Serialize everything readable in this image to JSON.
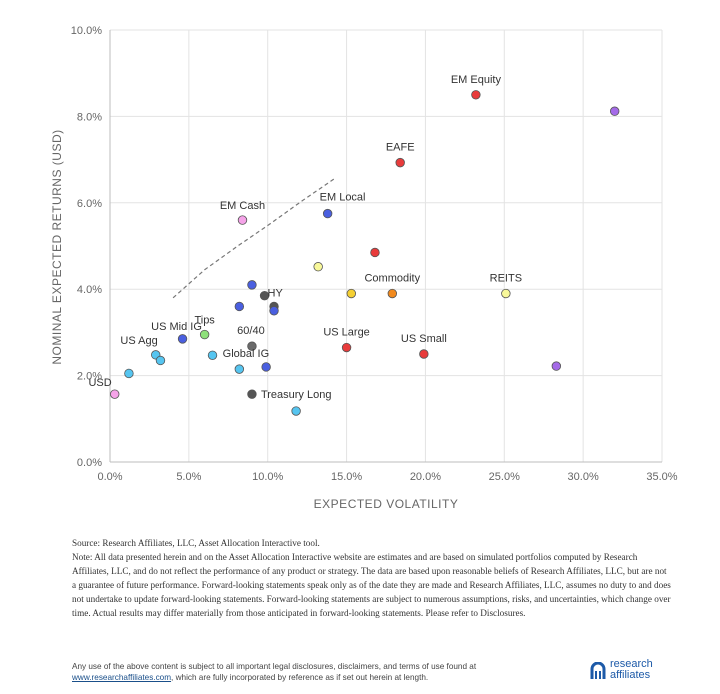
{
  "chart_data": {
    "type": "scatter",
    "xlabel": "EXPECTED VOLATILITY",
    "ylabel": "NOMINAL EXPECTED RETURNS (USD)",
    "xlim": [
      0,
      35
    ],
    "ylim": [
      0,
      10
    ],
    "x_ticks": [
      "0.0%",
      "5.0%",
      "10.0%",
      "15.0%",
      "20.0%",
      "25.0%",
      "30.0%",
      "35.0%"
    ],
    "y_ticks": [
      "0.0%",
      "2.0%",
      "4.0%",
      "6.0%",
      "8.0%",
      "10.0%"
    ],
    "grid": true,
    "frontier_line": [
      [
        4.0,
        3.8
      ],
      [
        6.0,
        4.45
      ],
      [
        8.1,
        5.0
      ],
      [
        10.1,
        5.5
      ],
      [
        12.2,
        6.05
      ],
      [
        14.2,
        6.55
      ]
    ],
    "points": [
      {
        "x": 0.3,
        "y": 1.57,
        "color": "#f5a3e8",
        "label": "USD"
      },
      {
        "x": 1.2,
        "y": 2.05,
        "color": "#56c5f0",
        "label": ""
      },
      {
        "x": 2.9,
        "y": 2.48,
        "color": "#56c5f0",
        "label": "US Agg"
      },
      {
        "x": 3.2,
        "y": 2.35,
        "color": "#56c5f0",
        "label": ""
      },
      {
        "x": 4.6,
        "y": 2.85,
        "color": "#4a5fe0",
        "label": "US Mid IG"
      },
      {
        "x": 6.0,
        "y": 2.95,
        "color": "#8ee07a",
        "label": "Tips"
      },
      {
        "x": 6.5,
        "y": 2.47,
        "color": "#56c5f0",
        "label": ""
      },
      {
        "x": 8.2,
        "y": 2.15,
        "color": "#56c5f0",
        "label": ""
      },
      {
        "x": 8.4,
        "y": 5.6,
        "color": "#f5a3e8",
        "label": "EM Cash"
      },
      {
        "x": 8.2,
        "y": 3.6,
        "color": "#4a5fe0",
        "label": ""
      },
      {
        "x": 9.0,
        "y": 4.1,
        "color": "#4a5fe0",
        "label": ""
      },
      {
        "x": 9.0,
        "y": 2.68,
        "color": "#6a6a6a",
        "label": "60/40"
      },
      {
        "x": 9.0,
        "y": 1.57,
        "color": "#555555",
        "label": "Treasury Long"
      },
      {
        "x": 9.9,
        "y": 2.2,
        "color": "#4a5fe0",
        "label": "Global IG"
      },
      {
        "x": 9.8,
        "y": 3.85,
        "color": "#555555",
        "label": "HY"
      },
      {
        "x": 10.4,
        "y": 3.6,
        "color": "#555555",
        "label": ""
      },
      {
        "x": 10.4,
        "y": 3.5,
        "color": "#4a5fe0",
        "label": ""
      },
      {
        "x": 11.8,
        "y": 1.18,
        "color": "#56c5f0",
        "label": ""
      },
      {
        "x": 13.8,
        "y": 5.75,
        "color": "#4a5fe0",
        "label": "EM Local"
      },
      {
        "x": 13.2,
        "y": 4.52,
        "color": "#f8f89a",
        "label": ""
      },
      {
        "x": 15.3,
        "y": 3.9,
        "color": "#f5d033",
        "label": ""
      },
      {
        "x": 15.0,
        "y": 2.65,
        "color": "#e83b3b",
        "label": "US Large"
      },
      {
        "x": 16.8,
        "y": 4.85,
        "color": "#e83b3b",
        "label": ""
      },
      {
        "x": 17.9,
        "y": 3.9,
        "color": "#f28a1e",
        "label": "Commodity"
      },
      {
        "x": 18.4,
        "y": 6.93,
        "color": "#e83b3b",
        "label": "EAFE"
      },
      {
        "x": 19.9,
        "y": 2.5,
        "color": "#e83b3b",
        "label": "US Small"
      },
      {
        "x": 23.2,
        "y": 8.5,
        "color": "#e83b3b",
        "label": "EM Equity"
      },
      {
        "x": 25.1,
        "y": 3.9,
        "color": "#f8f89a",
        "label": "REITS"
      },
      {
        "x": 28.3,
        "y": 2.22,
        "color": "#a46ae8",
        "label": ""
      },
      {
        "x": 32.0,
        "y": 8.12,
        "color": "#a46ae8",
        "label": ""
      }
    ]
  },
  "footnote": {
    "source": "Source:  Research Affiliates, LLC, Asset Allocation Interactive tool.",
    "note": "Note: All data presented herein and on the Asset Allocation Interactive website are estimates and are based on simulated portfolios computed by Research Affiliates, LLC, and do not reflect the performance of any product or strategy. The data are based upon reasonable beliefs of Research Affiliates, LLC, but are not a guarantee of future performance.  Forward-looking statements speak only as of the date they are made and Research Affiliates, LLC, assumes no duty to and does not undertake to update forward-looking statements.  Forward-looking statements are subject to numerous assumptions, risks, and uncertainties, which change over time.  Actual results may differ materially from those anticipated in forward-looking statements. Please refer to Disclosures."
  },
  "disclaimer": {
    "line1": "Any use of the above content is subject to all important legal disclosures, disclaimers, and terms of use found at",
    "link": "www.researchaffiliates.com",
    "line2": ", which are fully incorporated by reference as if set out herein at length."
  },
  "logo": {
    "line1": "research",
    "line2": "affiliates",
    "color": "#1d5aa8"
  }
}
